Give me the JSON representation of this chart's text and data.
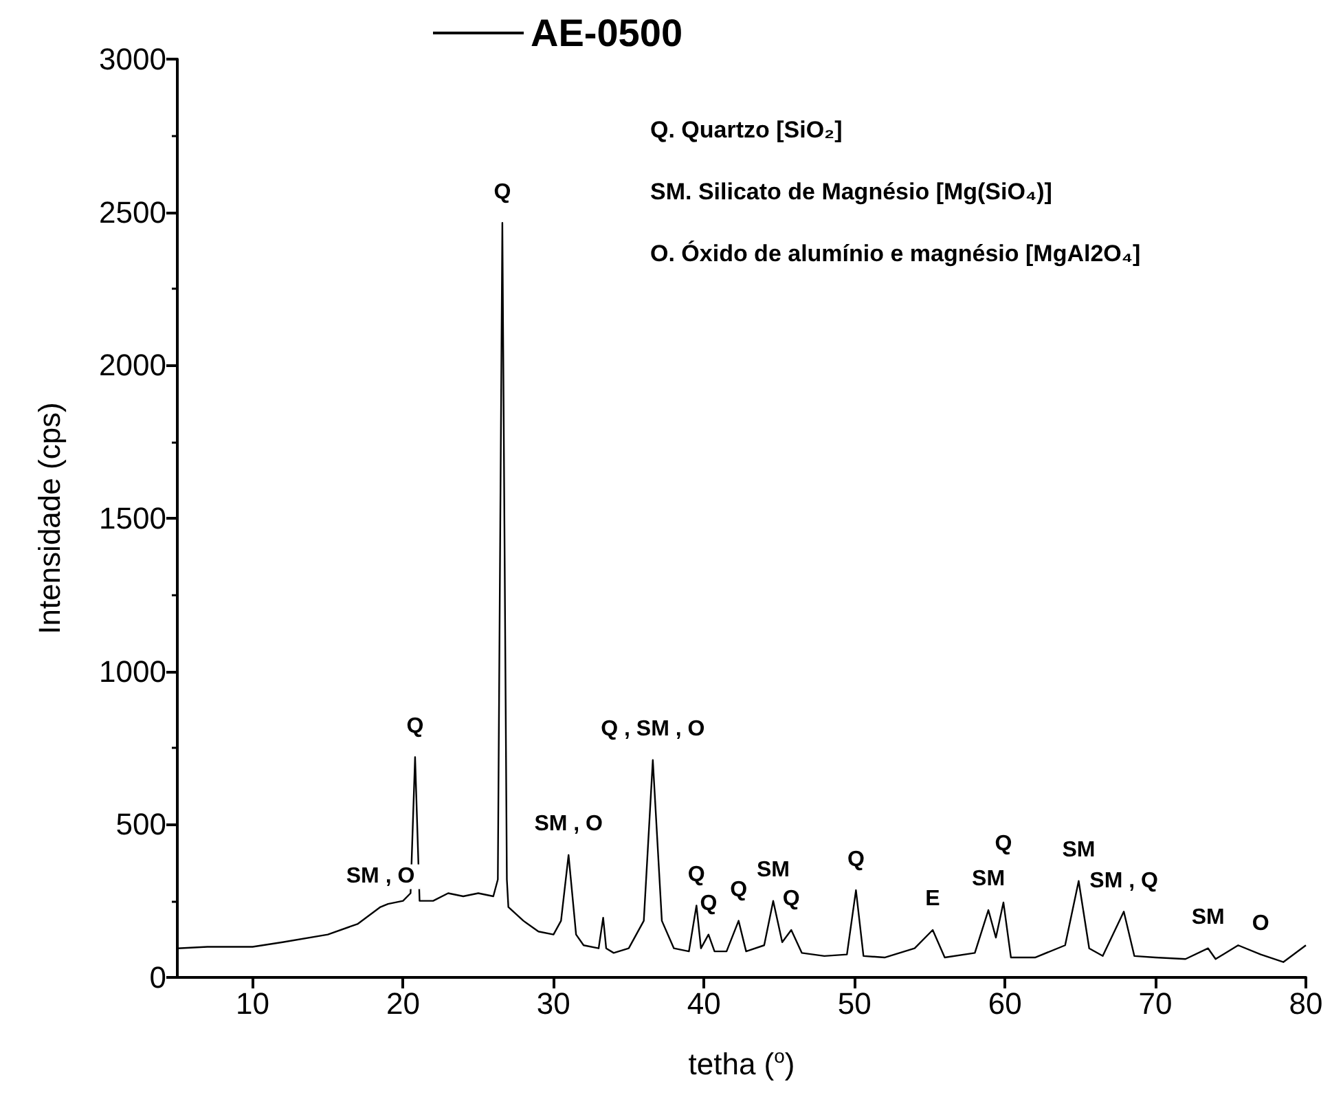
{
  "chart_data": {
    "type": "line",
    "xlabel": "tetha ($^{o}$)",
    "ylabel": "Intensidade (cps)",
    "xlim": [
      5,
      80
    ],
    "xticks": [
      10,
      20,
      30,
      40,
      50,
      60,
      70,
      80
    ],
    "ylim": [
      0,
      3000
    ],
    "yticks": [
      0,
      500,
      1000,
      1500,
      2000,
      2500,
      3000
    ],
    "grid": false,
    "legend": "top",
    "marker": "none",
    "line_style": "solid",
    "x": [
      5,
      7,
      10,
      12,
      15,
      17,
      18.5,
      19,
      20,
      20.5,
      20.8,
      21.1,
      22,
      23,
      24,
      25,
      26,
      26.3,
      26.6,
      26.9,
      27,
      28,
      29,
      30,
      30.5,
      31,
      31.5,
      32,
      33,
      33.3,
      33.5,
      34,
      35,
      36,
      36.6,
      37.2,
      38,
      39,
      39.5,
      39.8,
      40.3,
      40.7,
      41.5,
      42.3,
      42.8,
      44,
      44.6,
      45.2,
      45.8,
      46.5,
      48,
      49.5,
      50.1,
      50.6,
      52,
      54,
      55.2,
      56,
      58,
      58.9,
      59.4,
      59.9,
      60.4,
      62,
      64,
      64.9,
      65.6,
      66.5,
      67.9,
      68.6,
      70,
      72,
      73.5,
      74,
      75.5,
      77,
      78.5,
      80
    ],
    "series": [
      {
        "name": "AE-0500",
        "color": "#000000",
        "values": [
          95,
          100,
          100,
          115,
          140,
          175,
          230,
          240,
          250,
          275,
          720,
          250,
          250,
          275,
          265,
          275,
          265,
          320,
          2465,
          320,
          230,
          185,
          150,
          140,
          185,
          400,
          140,
          105,
          95,
          195,
          95,
          80,
          95,
          185,
          710,
          185,
          95,
          85,
          235,
          95,
          140,
          85,
          85,
          185,
          85,
          105,
          250,
          115,
          155,
          80,
          70,
          75,
          285,
          70,
          65,
          95,
          155,
          65,
          80,
          220,
          130,
          245,
          65,
          65,
          105,
          315,
          95,
          70,
          215,
          70,
          65,
          60,
          95,
          60,
          105,
          75,
          50,
          105
        ]
      }
    ],
    "annotations": [
      "Q. Quartzo [SiO₂]",
      "SM. Silicato de Magnésio [Mg(SiO₄)]",
      "O. Óxido de alumínio e magnésio [MgAl2O₄]",
      {
        "text": "SM , O",
        "x": 18.5,
        "y": 230
      },
      {
        "text": "Q",
        "x": 20.8,
        "y": 720
      },
      {
        "text": "Q",
        "x": 26.6,
        "y": 2465
      },
      {
        "text": "SM , O",
        "x": 31,
        "y": 400
      },
      {
        "text": "Q , SM , O",
        "x": 36.6,
        "y": 710
      },
      {
        "text": "Q",
        "x": 39.5,
        "y": 235
      },
      {
        "text": "Q",
        "x": 40.3,
        "y": 140
      },
      {
        "text": "Q",
        "x": 42.3,
        "y": 185
      },
      {
        "text": "SM",
        "x": 44.6,
        "y": 250
      },
      {
        "text": "Q",
        "x": 45.8,
        "y": 155
      },
      {
        "text": "Q",
        "x": 50.1,
        "y": 285
      },
      {
        "text": "E",
        "x": 55.2,
        "y": 155
      },
      {
        "text": "SM",
        "x": 58.9,
        "y": 220
      },
      {
        "text": "Q",
        "x": 59.9,
        "y": 245
      },
      {
        "text": "SM",
        "x": 64.9,
        "y": 315
      },
      {
        "text": "SM , Q",
        "x": 67.9,
        "y": 215
      },
      {
        "text": "SM",
        "x": 73.5,
        "y": 95
      },
      {
        "text": "O",
        "x": 77,
        "y": 75
      }
    ]
  }
}
